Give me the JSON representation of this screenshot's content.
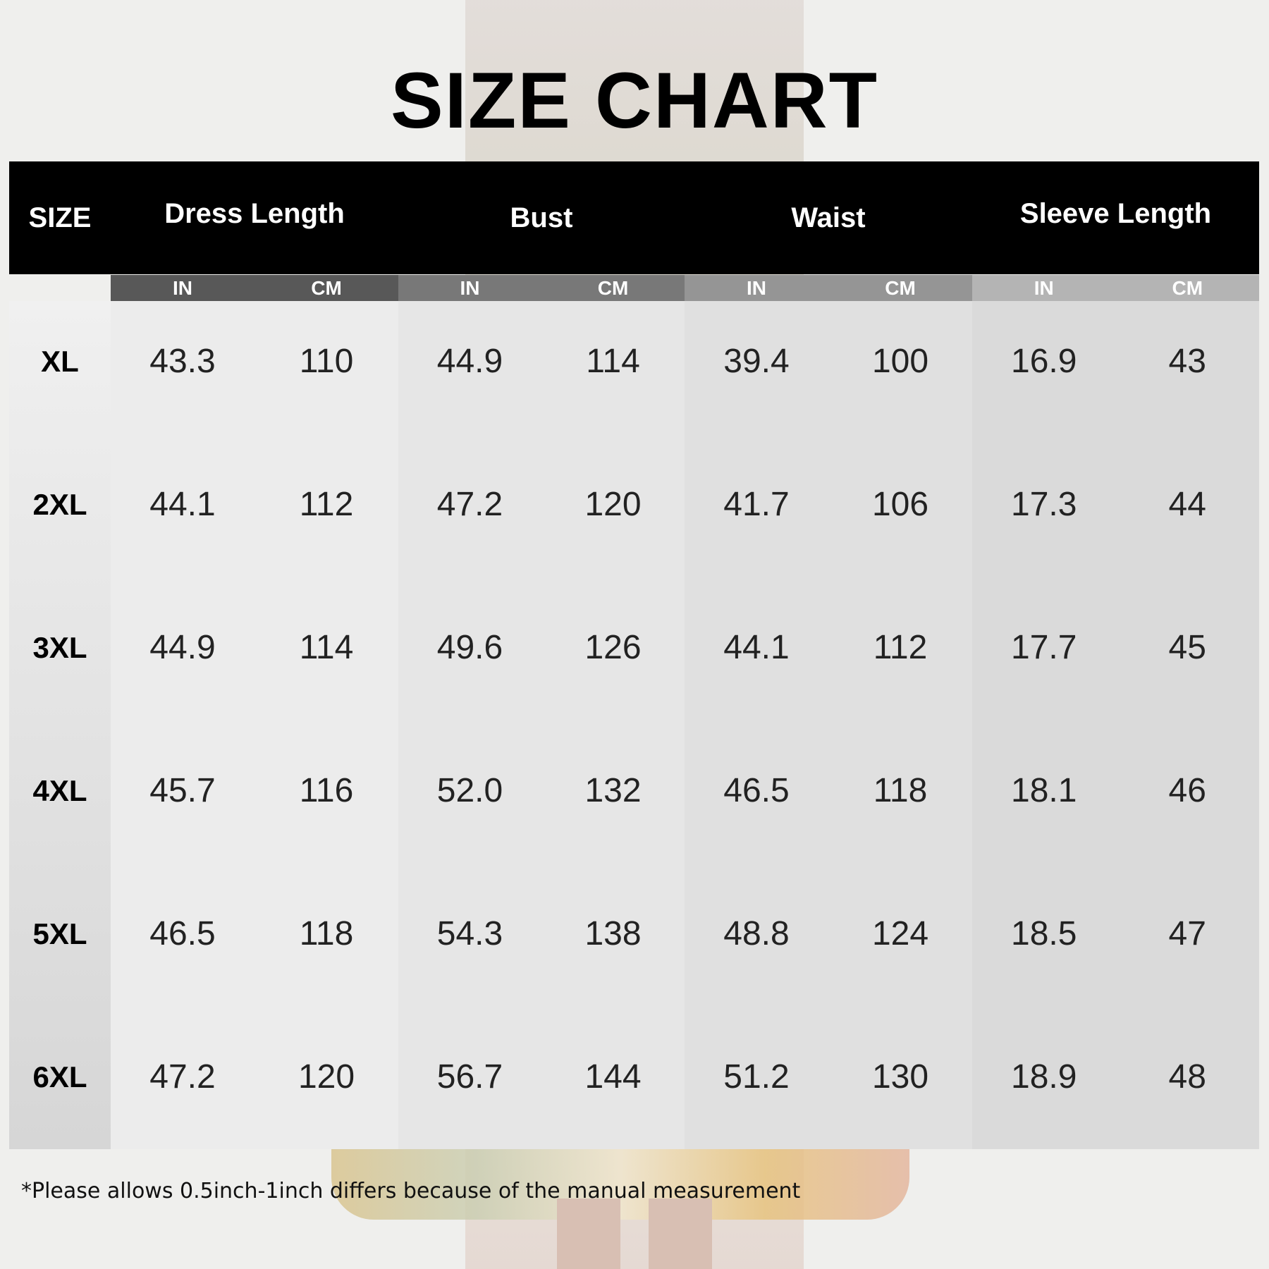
{
  "title": "SIZE CHART",
  "headers": {
    "size": "SIZE",
    "groups": [
      "Dress Length",
      "Bust",
      "Waist",
      "Sleeve Length"
    ],
    "units": [
      "IN",
      "CM"
    ]
  },
  "rows": [
    {
      "size": "XL",
      "values": [
        "43.3",
        "110",
        "44.9",
        "114",
        "39.4",
        "100",
        "16.9",
        "43"
      ]
    },
    {
      "size": "2XL",
      "values": [
        "44.1",
        "112",
        "47.2",
        "120",
        "41.7",
        "106",
        "17.3",
        "44"
      ]
    },
    {
      "size": "3XL",
      "values": [
        "44.9",
        "114",
        "49.6",
        "126",
        "44.1",
        "112",
        "17.7",
        "45"
      ]
    },
    {
      "size": "4XL",
      "values": [
        "45.7",
        "116",
        "52.0",
        "132",
        "46.5",
        "118",
        "18.1",
        "46"
      ]
    },
    {
      "size": "5XL",
      "values": [
        "46.5",
        "118",
        "54.3",
        "138",
        "48.8",
        "124",
        "18.5",
        "47"
      ]
    },
    {
      "size": "6XL",
      "values": [
        "47.2",
        "120",
        "56.7",
        "144",
        "51.2",
        "130",
        "18.9",
        "48"
      ]
    }
  ],
  "note": "*Please allows 0.5inch-1inch differs because of the manual measurement",
  "colors": {
    "header_bg": "#000000",
    "unit_bars": [
      "#585858",
      "#787878",
      "#959595",
      "#b4b4b4"
    ],
    "columns": [
      "#ececec",
      "#e6e6e6",
      "#e0e0e0",
      "#dadada"
    ]
  }
}
